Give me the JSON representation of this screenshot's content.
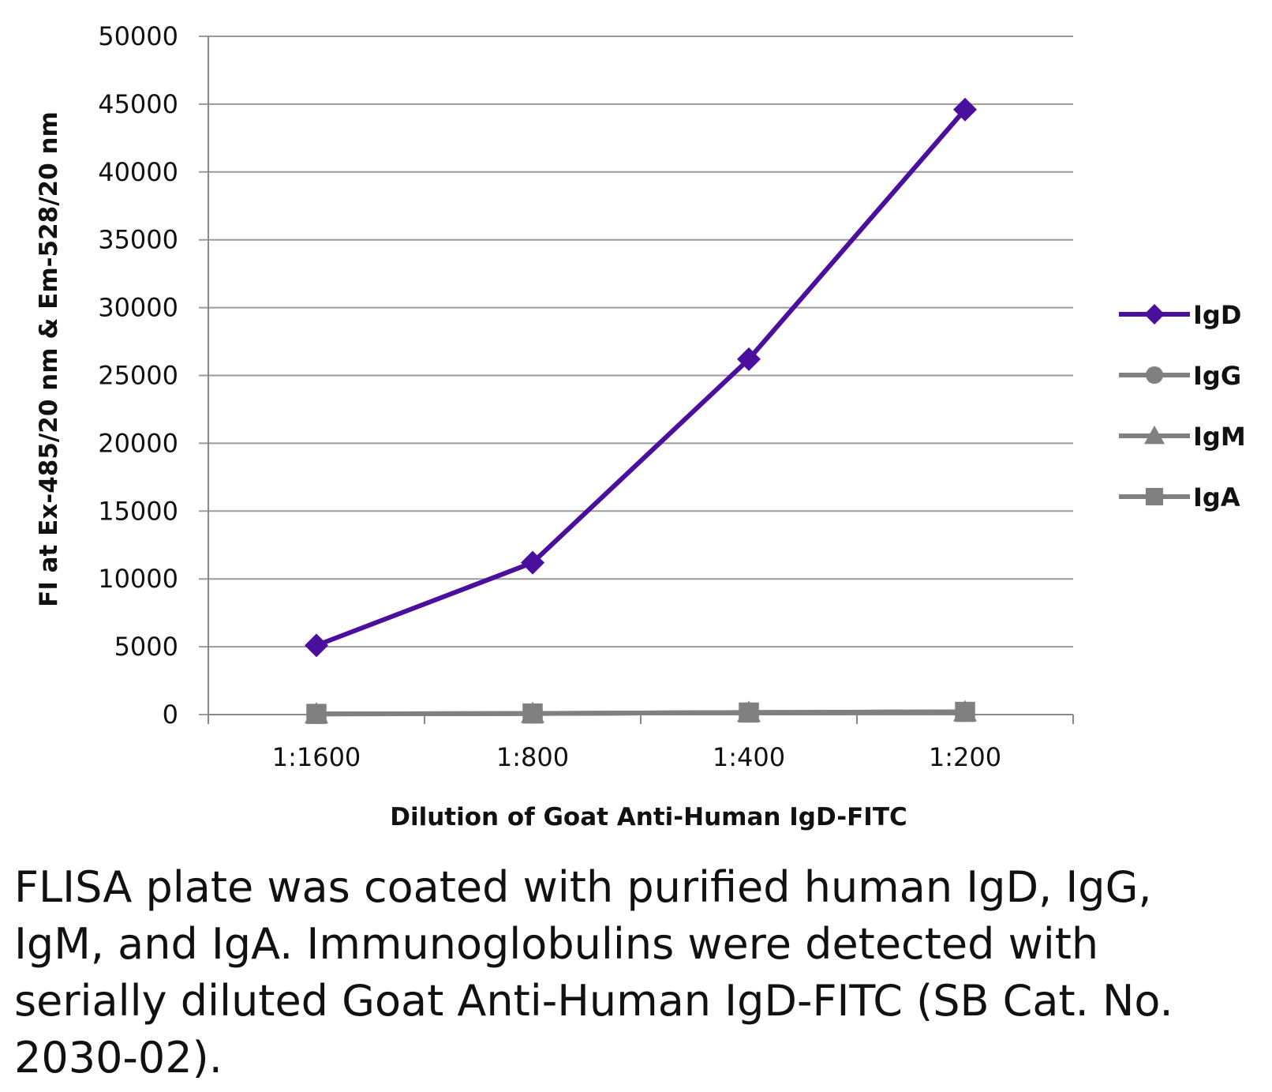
{
  "chart_data": {
    "type": "line",
    "title": "",
    "xlabel": "Dilution of Goat Anti-Human IgD-FITC",
    "ylabel": "FI at Ex-485/20 nm & Em-528/20 nm",
    "categories": [
      "1:1600",
      "1:800",
      "1:400",
      "1:200"
    ],
    "ylim": [
      0,
      50000
    ],
    "yticks": [
      0,
      5000,
      10000,
      15000,
      20000,
      25000,
      30000,
      35000,
      40000,
      45000,
      50000
    ],
    "grid": true,
    "legend_position": "right",
    "series": [
      {
        "name": "IgD",
        "values": [
          5100,
          11200,
          26200,
          44600
        ],
        "color": "#4b0f9e",
        "marker": "diamond"
      },
      {
        "name": "IgG",
        "values": [
          50,
          80,
          150,
          200
        ],
        "color": "#808080",
        "marker": "circle"
      },
      {
        "name": "IgM",
        "values": [
          50,
          80,
          150,
          200
        ],
        "color": "#808080",
        "marker": "triangle"
      },
      {
        "name": "IgA",
        "values": [
          50,
          80,
          150,
          200
        ],
        "color": "#808080",
        "marker": "square"
      }
    ]
  },
  "caption": "FLISA plate was coated with purified human IgD, IgG, IgM, and IgA.  Immunoglobulins were detected with serially diluted Goat Anti-Human IgD-FITC (SB Cat. No. 2030-02)."
}
